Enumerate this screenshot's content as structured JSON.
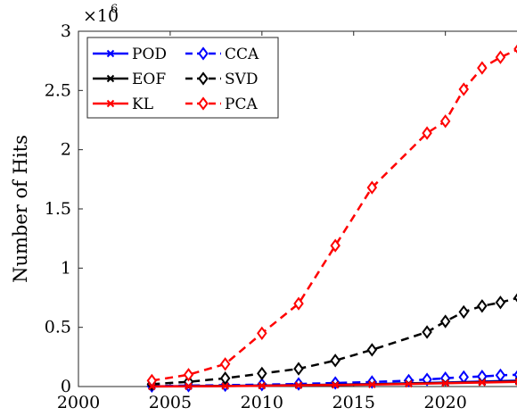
{
  "chart_data": {
    "type": "line",
    "title": "",
    "xlabel": "",
    "ylabel": "Number of Hits",
    "y_multiplier_base": "×10",
    "y_multiplier_exp": "6",
    "xlim": [
      2000,
      2024
    ],
    "ylim": [
      0,
      3000000
    ],
    "grid": false,
    "legend_position": "top-left",
    "x_ticks": [
      2000,
      2005,
      2010,
      2015,
      2020
    ],
    "y_ticks": [
      0,
      500000,
      1000000,
      1500000,
      2000000,
      2500000,
      3000000
    ],
    "y_tick_labels": [
      "0",
      "0.5",
      "1",
      "1.5",
      "2",
      "2.5",
      "3"
    ],
    "series": [
      {
        "name": "POD",
        "color": "#0000ff",
        "dash": "solid",
        "marker": "x",
        "x": [
          2004,
          2006,
          2008,
          2010,
          2012,
          2014,
          2016,
          2018,
          2020,
          2022,
          2024
        ],
        "y": [
          2000,
          4000,
          6000,
          9000,
          12000,
          16000,
          21000,
          27000,
          34000,
          42000,
          50000
        ]
      },
      {
        "name": "EOF",
        "color": "#000000",
        "dash": "solid",
        "marker": "x",
        "x": [
          2004,
          2006,
          2008,
          2010,
          2012,
          2014,
          2016,
          2018,
          2020,
          2022,
          2024
        ],
        "y": [
          1000,
          3000,
          5000,
          8000,
          11000,
          15000,
          19000,
          25000,
          31000,
          38000,
          45000
        ]
      },
      {
        "name": "KL",
        "color": "#ff0000",
        "dash": "solid",
        "marker": "x",
        "x": [
          2004,
          2006,
          2008,
          2010,
          2012,
          2014,
          2016,
          2018,
          2020,
          2022,
          2024
        ],
        "y": [
          1000,
          2000,
          4000,
          7000,
          10000,
          13000,
          17000,
          22000,
          28000,
          34000,
          40000
        ]
      },
      {
        "name": "CCA",
        "color": "#0000ff",
        "dash": "dashed",
        "marker": "diamond",
        "x": [
          2004,
          2006,
          2008,
          2010,
          2012,
          2014,
          2016,
          2018,
          2019,
          2020,
          2021,
          2022,
          2023,
          2024
        ],
        "y": [
          5000,
          8000,
          12000,
          16000,
          22000,
          30000,
          38000,
          50000,
          60000,
          70000,
          80000,
          85000,
          95000,
          100000
        ]
      },
      {
        "name": "SVD",
        "color": "#000000",
        "dash": "dashed",
        "marker": "diamond",
        "x": [
          2004,
          2006,
          2008,
          2010,
          2012,
          2014,
          2016,
          2019,
          2020,
          2021,
          2022,
          2023,
          2024
        ],
        "y": [
          20000,
          40000,
          70000,
          110000,
          150000,
          220000,
          310000,
          460000,
          550000,
          630000,
          680000,
          710000,
          750000
        ]
      },
      {
        "name": "PCA",
        "color": "#ff0000",
        "dash": "dashed",
        "marker": "diamond",
        "x": [
          2004,
          2006,
          2008,
          2010,
          2012,
          2014,
          2016,
          2019,
          2020,
          2021,
          2022,
          2023,
          2024
        ],
        "y": [
          50000,
          100000,
          190000,
          450000,
          700000,
          1190000,
          1680000,
          2140000,
          2240000,
          2510000,
          2690000,
          2780000,
          2850000
        ]
      }
    ]
  }
}
